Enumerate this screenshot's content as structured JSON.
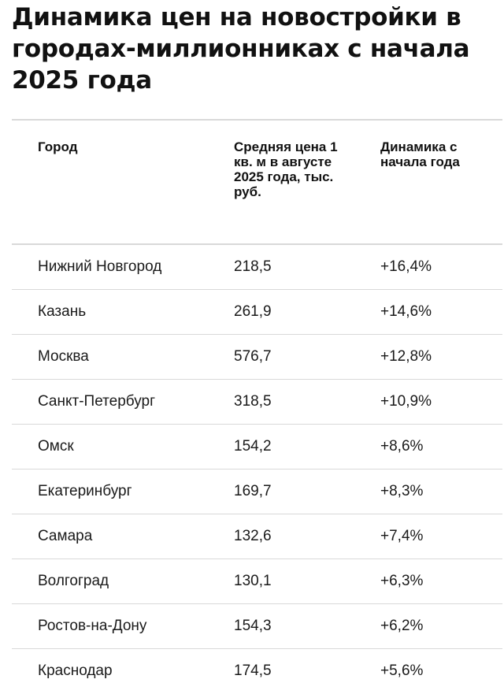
{
  "title": "Динамика цен на новостройки в городах-миллионниках с начала 2025 года",
  "table": {
    "headers": [
      "Город",
      "Средняя цена 1 кв. м в августе 2025 года, тыс. руб.",
      "Динамика с начала года"
    ],
    "rows": [
      {
        "city": "Нижний Новгород",
        "price": "218,5",
        "change": "+16,4%"
      },
      {
        "city": "Казань",
        "price": "261,9",
        "change": "+14,6%"
      },
      {
        "city": "Москва",
        "price": "576,7",
        "change": "+12,8%"
      },
      {
        "city": "Санкт-Петербург",
        "price": "318,5",
        "change": "+10,9%"
      },
      {
        "city": "Омск",
        "price": "154,2",
        "change": "+8,6%"
      },
      {
        "city": "Екатеринбург",
        "price": "169,7",
        "change": "+8,3%"
      },
      {
        "city": "Самара",
        "price": "132,6",
        "change": "+7,4%"
      },
      {
        "city": "Волгоград",
        "price": "130,1",
        "change": "+6,3%"
      },
      {
        "city": "Ростов-на-Дону",
        "price": "154,3",
        "change": "+6,2%"
      },
      {
        "city": "Краснодар",
        "price": "174,5",
        "change": "+5,6%"
      }
    ]
  }
}
